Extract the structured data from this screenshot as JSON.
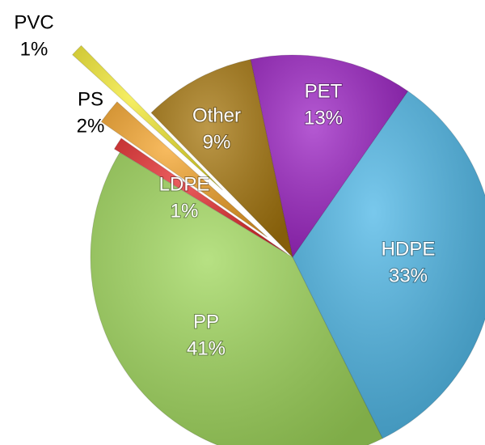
{
  "chart_data": {
    "type": "pie",
    "categories": [
      "PET",
      "HDPE",
      "PP",
      "LDPE",
      "PS",
      "PVC",
      "Other"
    ],
    "values": [
      13,
      33,
      41,
      1,
      2,
      1,
      9
    ],
    "value_labels": [
      "13%",
      "33%",
      "41%",
      "1%",
      "2%",
      "1%",
      "9%"
    ],
    "colors": [
      "#9c22c4",
      "#4cb6e6",
      "#9fd75a",
      "#e62a2c",
      "#f5a42a",
      "#f4ea30",
      "#a6760c"
    ]
  }
}
